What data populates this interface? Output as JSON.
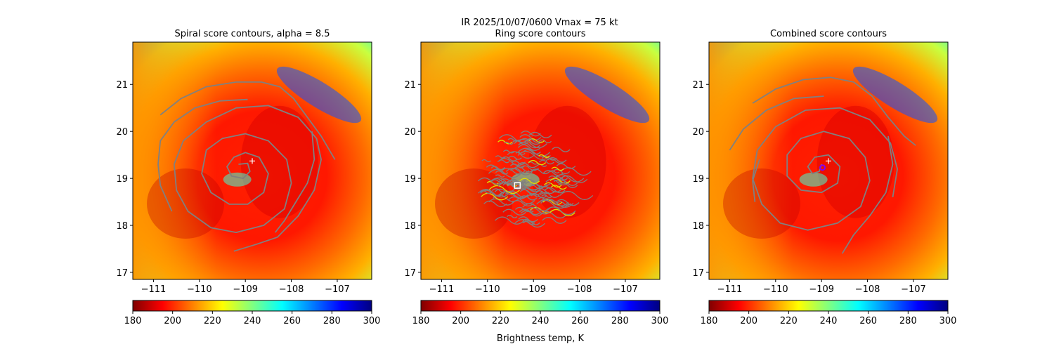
{
  "suptitle": "IR  2025/10/07/0600    Vmax = 75 kt",
  "colorbar_label": "Brightness temp, K",
  "colormap": [
    "#800000",
    "#ff0000",
    "#ff8000",
    "#ffff00",
    "#80ff80",
    "#00ffff",
    "#0080ff",
    "#0000ff",
    "#000080"
  ],
  "contour_color": "#808080",
  "chart_data": [
    {
      "type": "heatmap",
      "title": "Spiral score contours, alpha =  8.5",
      "x_ticks": [
        -111,
        -110,
        -109,
        -108,
        -107
      ],
      "y_ticks": [
        17,
        18,
        19,
        20,
        21
      ],
      "xlim": [
        -111.45,
        -106.25
      ],
      "ylim": [
        16.85,
        21.9
      ],
      "colorbar": {
        "range": [
          180,
          300
        ],
        "ticks": [
          180,
          200,
          220,
          240,
          260,
          280,
          300
        ]
      },
      "storm_center": {
        "lon": -109.1,
        "lat": 19.2
      },
      "markers": [
        {
          "kind": "plus",
          "lon": -108.85,
          "lat": 19.37,
          "color": "#ffffff"
        }
      ],
      "contours": [
        [
          [
            -109.15,
            19.3
          ],
          [
            -108.95,
            19.32
          ],
          [
            -108.9,
            19.15
          ],
          [
            -109.05,
            19.0
          ],
          [
            -109.3,
            19.05
          ],
          [
            -109.4,
            19.25
          ],
          [
            -109.25,
            19.45
          ],
          [
            -109.0,
            19.55
          ],
          [
            -108.7,
            19.45
          ],
          [
            -108.5,
            19.1
          ],
          [
            -108.6,
            18.7
          ],
          [
            -108.95,
            18.45
          ],
          [
            -109.35,
            18.45
          ],
          [
            -109.75,
            18.7
          ],
          [
            -109.95,
            19.1
          ],
          [
            -109.85,
            19.6
          ],
          [
            -109.5,
            19.85
          ],
          [
            -109.0,
            19.95
          ],
          [
            -108.5,
            19.8
          ],
          [
            -108.1,
            19.4
          ],
          [
            -108.0,
            18.9
          ],
          [
            -108.15,
            18.35
          ],
          [
            -108.6,
            18.0
          ],
          [
            -109.2,
            17.85
          ],
          [
            -109.75,
            17.95
          ],
          [
            -110.25,
            18.3
          ],
          [
            -110.5,
            18.75
          ],
          [
            -110.55,
            19.3
          ],
          [
            -110.35,
            19.8
          ],
          [
            -109.85,
            20.2
          ],
          [
            -109.2,
            20.5
          ],
          [
            -108.5,
            20.55
          ],
          [
            -107.85,
            20.3
          ],
          [
            -107.45,
            19.85
          ],
          [
            -107.35,
            19.4
          ],
          [
            -107.5,
            18.75
          ],
          [
            -107.85,
            18.2
          ],
          [
            -108.3,
            17.75
          ],
          [
            -108.75,
            17.6
          ],
          [
            -109.25,
            17.45
          ]
        ],
        [
          [
            -110.85,
            20.35
          ],
          [
            -110.4,
            20.7
          ],
          [
            -109.85,
            20.95
          ],
          [
            -109.2,
            21.05
          ],
          [
            -108.65,
            21.05
          ],
          [
            -108.25,
            20.95
          ],
          [
            -107.95,
            20.7
          ],
          [
            -107.65,
            20.3
          ],
          [
            -107.35,
            19.9
          ],
          [
            -107.05,
            19.4
          ]
        ],
        [
          [
            -110.6,
            18.3
          ],
          [
            -110.85,
            18.85
          ],
          [
            -110.9,
            19.3
          ],
          [
            -110.85,
            19.8
          ],
          [
            -110.55,
            20.2
          ],
          [
            -110.1,
            20.5
          ],
          [
            -109.55,
            20.65
          ],
          [
            -108.95,
            20.68
          ]
        ],
        [
          [
            -107.55,
            20.0
          ],
          [
            -107.5,
            19.4
          ],
          [
            -107.65,
            18.9
          ],
          [
            -107.9,
            18.5
          ],
          [
            -108.15,
            18.1
          ],
          [
            -108.35,
            17.85
          ]
        ]
      ]
    },
    {
      "type": "heatmap",
      "title": "Ring score contours",
      "x_ticks": [
        -111,
        -110,
        -109,
        -108,
        -107
      ],
      "y_ticks": [
        17,
        18,
        19,
        20,
        21
      ],
      "xlim": [
        -111.45,
        -106.25
      ],
      "ylim": [
        16.85,
        21.9
      ],
      "colorbar": {
        "range": [
          180,
          300
        ],
        "ticks": [
          180,
          200,
          220,
          240,
          260,
          280,
          300
        ]
      },
      "storm_center": {
        "lon": -109.1,
        "lat": 19.2
      },
      "markers": [
        {
          "kind": "square",
          "lon": -109.35,
          "lat": 18.85,
          "color": "#ffffff"
        }
      ],
      "ring_region": {
        "lon": -109.3,
        "lat": 18.95,
        "rx": 0.95,
        "ry": 0.95
      },
      "contours": []
    },
    {
      "type": "heatmap",
      "title": "Combined score contours",
      "x_ticks": [
        -111,
        -110,
        -109,
        -108,
        -107
      ],
      "y_ticks": [
        17,
        18,
        19,
        20,
        21
      ],
      "xlim": [
        -111.45,
        -106.25
      ],
      "ylim": [
        16.85,
        21.9
      ],
      "colorbar": {
        "range": [
          180,
          300
        ],
        "ticks": [
          180,
          200,
          220,
          240,
          260,
          280,
          300
        ]
      },
      "storm_center": {
        "lon": -109.1,
        "lat": 19.2
      },
      "markers": [
        {
          "kind": "plus",
          "lon": -108.85,
          "lat": 19.37,
          "color": "#ffffff"
        },
        {
          "kind": "circle",
          "lon": -108.98,
          "lat": 19.23,
          "color": "#8000ff"
        }
      ],
      "contours": [
        [
          [
            -109.0,
            19.3
          ],
          [
            -109.05,
            19.15
          ],
          [
            -109.2,
            19.1
          ],
          [
            -109.3,
            19.25
          ],
          [
            -109.15,
            19.45
          ],
          [
            -108.85,
            19.5
          ],
          [
            -108.6,
            19.25
          ],
          [
            -108.65,
            18.9
          ],
          [
            -109.0,
            18.7
          ],
          [
            -109.45,
            18.75
          ],
          [
            -109.75,
            19.05
          ],
          [
            -109.75,
            19.5
          ],
          [
            -109.45,
            19.85
          ],
          [
            -108.95,
            20.0
          ],
          [
            -108.4,
            19.85
          ],
          [
            -108.05,
            19.45
          ],
          [
            -107.95,
            18.95
          ],
          [
            -108.15,
            18.4
          ],
          [
            -108.65,
            18.05
          ],
          [
            -109.3,
            17.9
          ],
          [
            -109.9,
            18.05
          ],
          [
            -110.3,
            18.45
          ],
          [
            -110.5,
            19.0
          ],
          [
            -110.4,
            19.6
          ],
          [
            -110.0,
            20.1
          ],
          [
            -109.35,
            20.45
          ],
          [
            -108.6,
            20.5
          ],
          [
            -107.95,
            20.25
          ],
          [
            -107.5,
            19.75
          ],
          [
            -107.35,
            19.2
          ],
          [
            -107.45,
            18.6
          ]
        ],
        [
          [
            -110.5,
            20.6
          ],
          [
            -110.0,
            20.9
          ],
          [
            -109.4,
            21.1
          ],
          [
            -108.8,
            21.15
          ],
          [
            -108.3,
            21.05
          ],
          [
            -107.9,
            20.75
          ],
          [
            -107.55,
            20.3
          ],
          [
            -107.2,
            19.9
          ],
          [
            -106.95,
            19.7
          ]
        ],
        [
          [
            -111.0,
            19.6
          ],
          [
            -110.7,
            20.05
          ],
          [
            -110.2,
            20.45
          ],
          [
            -109.6,
            20.7
          ],
          [
            -108.95,
            20.75
          ]
        ],
        [
          [
            -110.45,
            18.5
          ],
          [
            -110.5,
            18.95
          ],
          [
            -110.35,
            19.4
          ]
        ],
        [
          [
            -107.55,
            19.9
          ],
          [
            -107.45,
            19.3
          ],
          [
            -107.6,
            18.7
          ],
          [
            -107.95,
            18.2
          ],
          [
            -108.3,
            17.8
          ],
          [
            -108.55,
            17.4
          ]
        ]
      ]
    }
  ]
}
